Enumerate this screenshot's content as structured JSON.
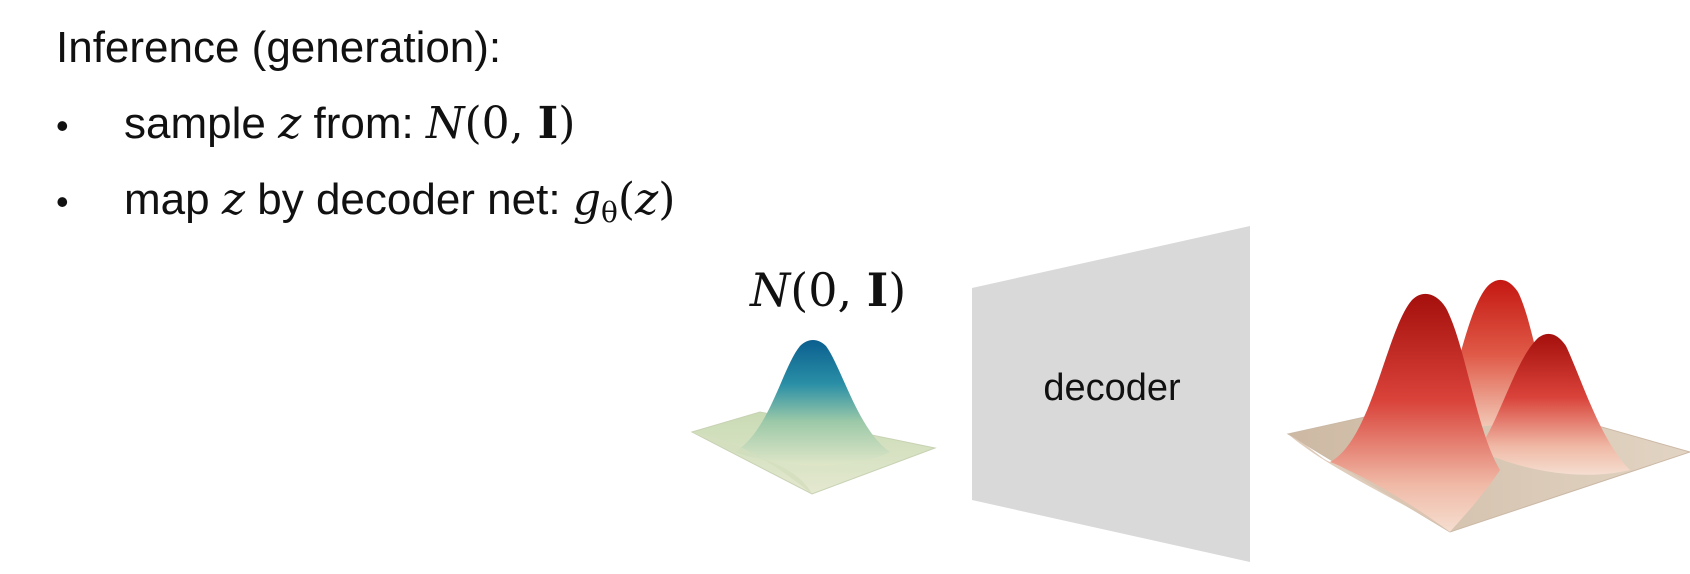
{
  "heading": "Inference (generation):",
  "bullets": [
    {
      "marker": "•",
      "text_before": "sample",
      "var": "z",
      "text_after": "from:",
      "math": {
        "symbol": "N",
        "open": "(0,",
        "bold": "I",
        "close": ")"
      }
    },
    {
      "marker": "•",
      "text_before": "map",
      "var": "z",
      "text_after": "by decoder net:",
      "math": {
        "func": "g",
        "sub": "θ",
        "open": "(",
        "arg": "z",
        "close": ")"
      }
    }
  ],
  "diagram": {
    "prior_label": {
      "symbol": "N",
      "open": "(0,",
      "bold": "I",
      "close": ")"
    },
    "decoder_label": "decoder",
    "colors": {
      "decoder_fill": "#d9d9d9",
      "prior_peak": "#0b5f8f",
      "prior_base": "#dfe6c8",
      "output_peak": "#b3120f",
      "output_base": "#d8c6b2"
    }
  }
}
